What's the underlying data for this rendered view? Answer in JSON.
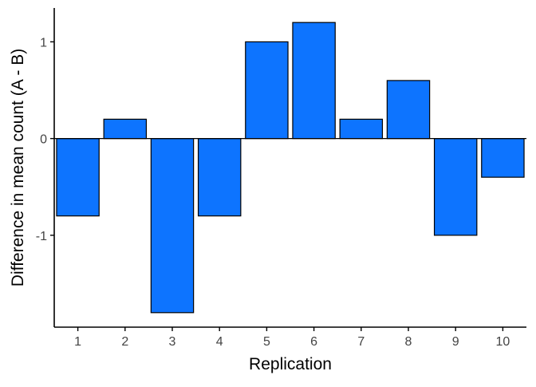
{
  "chart_data": {
    "type": "bar",
    "title": "",
    "xlabel": "Replication",
    "ylabel": "Difference in mean count (A - B)",
    "categories": [
      "1",
      "2",
      "3",
      "4",
      "5",
      "6",
      "7",
      "8",
      "9",
      "10"
    ],
    "values": [
      -0.8,
      0.2,
      -1.8,
      -0.8,
      1.0,
      1.2,
      0.2,
      0.6,
      -1.0,
      -0.4
    ],
    "ylim": [
      -1.95,
      1.35
    ],
    "yticks": [
      -1,
      0,
      1
    ],
    "ytick_labels": [
      "-1",
      "0",
      "1"
    ],
    "bar_color": "#0d74ff",
    "bar_outline": "#000000",
    "grid": false,
    "legend": "none",
    "zero_line": true
  }
}
